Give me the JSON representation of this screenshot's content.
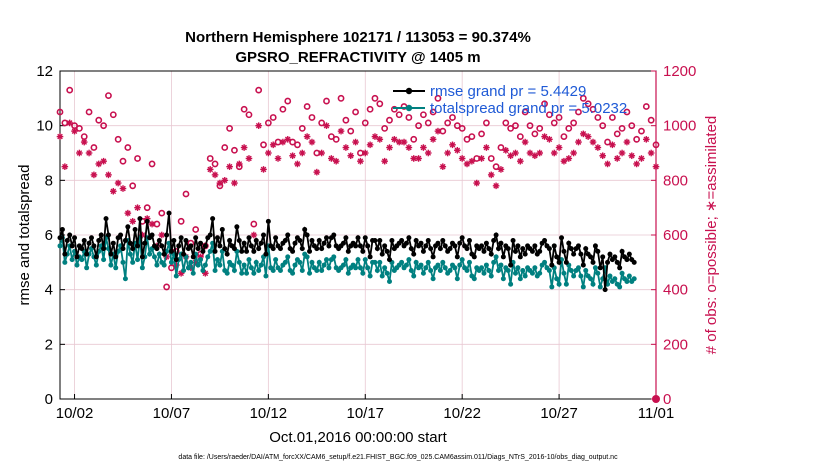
{
  "chart_data": {
    "type": "line",
    "title_line1": "Northern Hemisphere 102171 / 113053 = 90.374%",
    "title_line2": "GPSRO_REFRACTIVITY @ 1405 m",
    "xlabel": "Oct.01,2016 00:00:00 start",
    "ylabel": "rmse and totalspread",
    "ylabel_right": "# of obs: o=possible; ∗=assimilated",
    "footnote": "data file: /Users/raeder/DAI/ATM_forcXX/CAM6_setup/f.e21.FHIST_BGC.f09_025.CAM6assim.011/Diags_NTrS_2016-10/obs_diag_output.nc",
    "x_ticks": [
      "10/02",
      "10/07",
      "10/12",
      "10/17",
      "10/22",
      "10/27",
      "11/01"
    ],
    "x_tick_days": [
      1,
      6,
      11,
      16,
      21,
      26,
      31
    ],
    "xlim": [
      0.25,
      31
    ],
    "ylim": [
      0,
      12
    ],
    "y_ticks": [
      "0",
      "2",
      "4",
      "6",
      "8",
      "10",
      "12"
    ],
    "ylim_right": [
      0,
      1200
    ],
    "y_ticks_right": [
      "0",
      "200",
      "400",
      "600",
      "800",
      "1000",
      "1200"
    ],
    "grid": true,
    "legend_position": "top-right",
    "legend": [
      "rmse grand pr = 5.4429",
      "totalspread grand pr = 5.0232"
    ],
    "colors": {
      "rmse": "#000000",
      "spread": "#008080",
      "obs": "#c8104f",
      "legend_text": "#1f5ad6",
      "grid": "#e8c8d2"
    },
    "series": [
      {
        "name": "rmse grand pr = 5.4429",
        "axis": "left",
        "x_days_start": 0.25,
        "x_step_days": 0.125,
        "values": [
          5.9,
          6.2,
          5.3,
          5.8,
          6.0,
          5.6,
          5.9,
          5.2,
          5.6,
          5.5,
          5.8,
          5.3,
          5.7,
          5.9,
          5.6,
          5.2,
          5.8,
          6.0,
          5.5,
          6.6,
          6.0,
          5.3,
          5.7,
          5.2,
          5.9,
          6.0,
          5.5,
          5.8,
          6.3,
          5.7,
          5.5,
          6.2,
          5.6,
          6.6,
          5.2,
          5.7,
          6.5,
          5.9,
          6.0,
          5.6,
          5.5,
          5.8,
          5.6,
          5.3,
          6.0,
          6.8,
          5.4,
          5.8,
          5.1,
          5.6,
          5.9,
          5.3,
          5.8,
          5.5,
          5.6,
          5.2,
          5.9,
          5.5,
          5.7,
          5.4,
          5.6,
          5.9,
          6.0,
          6.6,
          5.4,
          5.9,
          5.6,
          6.2,
          5.5,
          5.3,
          5.8,
          5.6,
          5.5,
          6.3,
          5.8,
          5.4,
          5.7,
          5.4,
          5.9,
          5.6,
          5.4,
          5.8,
          5.5,
          5.7,
          6.0,
          5.3,
          6.5,
          5.6,
          5.5,
          5.9,
          5.6,
          5.5,
          5.7,
          5.8,
          6.0,
          5.5,
          5.4,
          5.7,
          5.9,
          5.8,
          5.5,
          6.2,
          6.0,
          5.4,
          5.8,
          5.6,
          5.5,
          5.8,
          5.5,
          5.7,
          5.9,
          5.6,
          5.9,
          6.0,
          5.6,
          5.5,
          5.6,
          5.7,
          5.9,
          5.4,
          5.6,
          5.7,
          5.6,
          5.9,
          5.6,
          5.4,
          5.9,
          5.6,
          5.2,
          5.8,
          5.8,
          5.5,
          5.8,
          5.3,
          5.6,
          5.4,
          5.1,
          5.8,
          5.5,
          5.6,
          5.7,
          5.8,
          5.6,
          5.7,
          5.9,
          5.5,
          5.3,
          5.8,
          5.6,
          5.7,
          5.4,
          5.6,
          5.8,
          5.5,
          5.2,
          5.6,
          5.7,
          5.5,
          5.8,
          5.6,
          5.4,
          5.5,
          5.7,
          5.6,
          5.2,
          5.7,
          5.9,
          5.6,
          5.5,
          5.8,
          5.3,
          5.2,
          5.6,
          5.5,
          5.6,
          5.4,
          5.7,
          5.5,
          5.3,
          5.8,
          6.0,
          5.5,
          5.7,
          5.2,
          5.6,
          5.5,
          4.9,
          5.8,
          5.4,
          5.6,
          5.2,
          5.5,
          5.3,
          5.6,
          5.5,
          5.4,
          5.6,
          5.3,
          5.4,
          5.7,
          5.8,
          5.6,
          5.5,
          4.9,
          5.6,
          5.2,
          5.0,
          5.9,
          5.4,
          5.0,
          5.7,
          5.5,
          5.3,
          5.5,
          5.6,
          5.3,
          4.9,
          5.5,
          5.3,
          5.2,
          5.0,
          5.6,
          5.4,
          4.8,
          5.2,
          4.0,
          5.0,
          5.3,
          5.1,
          5.2,
          5.0,
          4.8,
          5.4,
          5.2,
          5.1,
          5.3,
          5.1,
          5.0
        ]
      },
      {
        "name": "totalspread grand pr = 5.0232",
        "axis": "left",
        "x_days_start": 0.25,
        "x_step_days": 0.125,
        "values": [
          5.6,
          5.9,
          5.0,
          5.3,
          5.6,
          5.1,
          5.4,
          4.9,
          5.2,
          5.1,
          5.4,
          4.8,
          5.3,
          5.5,
          5.2,
          4.9,
          5.4,
          5.6,
          5.1,
          5.9,
          5.5,
          4.9,
          5.3,
          4.8,
          5.4,
          5.6,
          5.0,
          4.4,
          5.8,
          5.3,
          5.0,
          5.7,
          5.1,
          5.9,
          4.8,
          5.2,
          5.9,
          5.3,
          5.5,
          5.2,
          4.9,
          5.3,
          5.0,
          4.9,
          5.4,
          5.7,
          5.0,
          5.3,
          4.5,
          5.1,
          5.3,
          4.7,
          5.2,
          4.8,
          5.0,
          4.6,
          5.3,
          4.9,
          5.1,
          4.7,
          4.9,
          5.2,
          5.4,
          5.7,
          4.7,
          5.1,
          4.9,
          5.4,
          4.7,
          4.6,
          5.0,
          4.9,
          4.7,
          5.4,
          5.0,
          4.6,
          4.9,
          4.6,
          5.1,
          4.8,
          4.6,
          5.0,
          4.7,
          4.9,
          5.2,
          4.5,
          5.6,
          4.8,
          4.7,
          5.1,
          4.8,
          4.7,
          4.9,
          5.0,
          5.2,
          4.7,
          4.6,
          4.9,
          5.1,
          5.0,
          4.7,
          5.3,
          5.2,
          4.6,
          5.0,
          4.8,
          4.7,
          5.0,
          4.7,
          4.9,
          5.1,
          4.8,
          5.1,
          5.2,
          4.8,
          4.7,
          4.8,
          4.9,
          5.1,
          4.6,
          4.8,
          4.9,
          4.8,
          5.1,
          4.8,
          4.6,
          5.1,
          4.8,
          4.5,
          5.0,
          5.0,
          4.7,
          5.0,
          4.5,
          4.8,
          4.6,
          4.3,
          5.0,
          4.7,
          4.8,
          4.9,
          5.0,
          4.8,
          4.9,
          5.1,
          4.7,
          4.5,
          5.0,
          4.8,
          4.9,
          4.6,
          4.8,
          5.0,
          4.7,
          4.4,
          4.8,
          4.9,
          4.7,
          5.0,
          4.8,
          4.6,
          4.7,
          4.9,
          4.8,
          4.4,
          4.9,
          5.1,
          4.8,
          4.7,
          5.0,
          4.5,
          4.4,
          4.8,
          4.7,
          4.8,
          4.6,
          4.9,
          4.7,
          4.5,
          5.0,
          5.2,
          4.7,
          4.9,
          4.4,
          4.8,
          4.7,
          4.2,
          5.0,
          4.6,
          4.8,
          4.4,
          4.7,
          4.5,
          4.8,
          4.7,
          4.6,
          4.8,
          4.5,
          4.6,
          4.9,
          5.0,
          4.8,
          4.7,
          4.1,
          4.8,
          4.4,
          4.2,
          5.1,
          4.6,
          4.2,
          4.9,
          4.7,
          4.5,
          4.7,
          4.8,
          4.5,
          4.1,
          4.7,
          4.5,
          4.4,
          4.2,
          4.8,
          4.6,
          4.1,
          4.4,
          4.8,
          4.2,
          4.5,
          4.3,
          4.4,
          4.2,
          4.1,
          4.6,
          4.4,
          4.3,
          4.5,
          4.3,
          4.4
        ]
      }
    ],
    "obs_possible": {
      "axis": "right",
      "marker": "circle",
      "x_days_start": 0.25,
      "x_step_days": 0.25,
      "values": [
        1050,
        1010,
        1130,
        1000,
        990,
        960,
        1050,
        920,
        1020,
        1000,
        1110,
        1040,
        950,
        870,
        920,
        780,
        880,
        650,
        700,
        860,
        640,
        680,
        410,
        480,
        540,
        650,
        750,
        570,
        620,
        530,
        560,
        880,
        860,
        780,
        920,
        990,
        910,
        850,
        1060,
        1040,
        640,
        1130,
        930,
        1010,
        1030,
        940,
        1060,
        1090,
        940,
        930,
        990,
        1070,
        1030,
        900,
        1010,
        1090,
        960,
        950,
        1100,
        1020,
        980,
        1050,
        900,
        1010,
        1060,
        1100,
        1080,
        990,
        1020,
        1060,
        1040,
        1070,
        1030,
        950,
        1000,
        1040,
        1010,
        1050,
        1100,
        980,
        1010,
        1030,
        1000,
        990,
        950,
        960,
        880,
        970,
        1010,
        880,
        850,
        920,
        1010,
        990,
        1000,
        960,
        1050,
        1000,
        970,
        990,
        1080,
        1040,
        1010,
        1030,
        960,
        990,
        1010,
        1050,
        1100,
        1080,
        1060,
        1030,
        1000,
        940,
        1030,
        970,
        990,
        1050,
        1000,
        950,
        980,
        1070,
        1020,
        930
      ]
    },
    "obs_assimilated": {
      "axis": "right",
      "marker": "asterisk",
      "x_days_start": 0.25,
      "x_step_days": 0.25,
      "values": [
        960,
        850,
        1010,
        980,
        900,
        940,
        900,
        820,
        860,
        870,
        820,
        760,
        790,
        770,
        680,
        650,
        700,
        600,
        660,
        640,
        560,
        600,
        520,
        540,
        490,
        460,
        520,
        480,
        500,
        520,
        460,
        840,
        820,
        790,
        800,
        850,
        790,
        860,
        920,
        880,
        600,
        1000,
        840,
        900,
        930,
        880,
        940,
        950,
        890,
        860,
        900,
        960,
        940,
        830,
        900,
        1000,
        880,
        870,
        980,
        920,
        890,
        940,
        870,
        900,
        930,
        960,
        950,
        870,
        920,
        950,
        940,
        940,
        920,
        880,
        880,
        920,
        900,
        950,
        980,
        850,
        900,
        930,
        910,
        880,
        860,
        870,
        790,
        880,
        920,
        820,
        780,
        840,
        910,
        890,
        900,
        870,
        940,
        900,
        890,
        900,
        960,
        950,
        900,
        920,
        870,
        880,
        900,
        940,
        970,
        960,
        940,
        920,
        890,
        860,
        930,
        880,
        900,
        940,
        890,
        860,
        880,
        950,
        900,
        850
      ]
    }
  }
}
